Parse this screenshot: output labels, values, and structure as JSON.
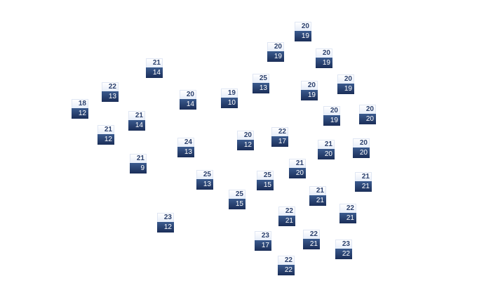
{
  "colors": {
    "high_bg": "#eef3fb",
    "low_bg": "#25396a",
    "high_text": "#2a3f6c",
    "low_text": "#ffffff"
  },
  "stations": [
    {
      "high": "20",
      "low": "19"
    },
    {
      "high": "20",
      "low": "19"
    },
    {
      "high": "20",
      "low": "19"
    },
    {
      "high": "25",
      "low": "13"
    },
    {
      "high": "20",
      "low": "19"
    },
    {
      "high": "20",
      "low": "19"
    },
    {
      "high": "20",
      "low": "19"
    },
    {
      "high": "20",
      "low": "20"
    },
    {
      "high": "19",
      "low": "10"
    },
    {
      "high": "22",
      "low": "17"
    },
    {
      "high": "20",
      "low": "12"
    },
    {
      "high": "21",
      "low": "20"
    },
    {
      "high": "20",
      "low": "20"
    },
    {
      "high": "21",
      "low": "14"
    },
    {
      "high": "22",
      "low": "13"
    },
    {
      "high": "18",
      "low": "12"
    },
    {
      "high": "20",
      "low": "14"
    },
    {
      "high": "21",
      "low": "14"
    },
    {
      "high": "21",
      "low": "12"
    },
    {
      "high": "24",
      "low": "13"
    },
    {
      "high": "21",
      "low": "9"
    },
    {
      "high": "25",
      "low": "13"
    },
    {
      "high": "25",
      "low": "15"
    },
    {
      "high": "23",
      "low": "12"
    },
    {
      "high": "25",
      "low": "15"
    },
    {
      "high": "21",
      "low": "20"
    },
    {
      "high": "21",
      "low": "21"
    },
    {
      "high": "21",
      "low": "21"
    },
    {
      "high": "22",
      "low": "21"
    },
    {
      "high": "22",
      "low": "21"
    },
    {
      "high": "23",
      "low": "17"
    },
    {
      "high": "22",
      "low": "21"
    },
    {
      "high": "23",
      "low": "22"
    },
    {
      "high": "22",
      "low": "22"
    }
  ]
}
